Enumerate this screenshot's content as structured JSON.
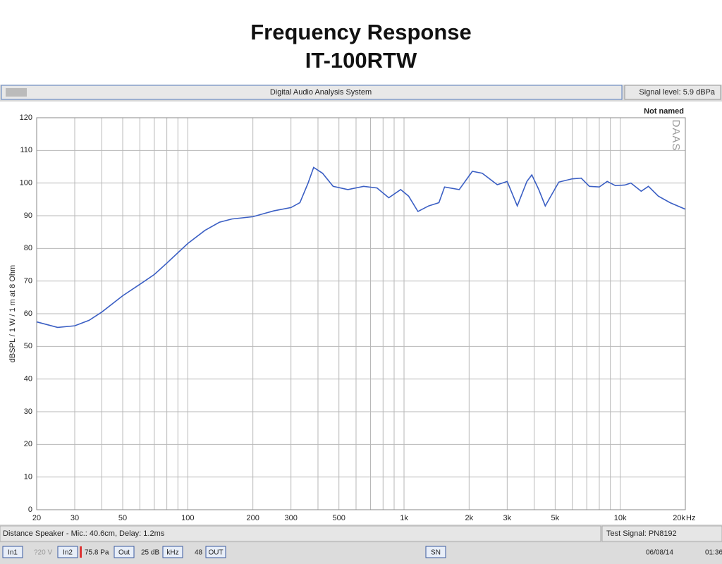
{
  "header": {
    "title_line1": "Frequency Response",
    "title_line2": "IT-100RTW"
  },
  "toolbar": {
    "title": "Digital Audio Analysis System",
    "signal_level": "Signal level: 5.9 dBPa"
  },
  "chart_data": {
    "type": "line",
    "name_label": "Not named",
    "watermark": "DAAS",
    "y_label": "dBSPL / 1 W / 1 m at 8 Ohm",
    "x_unit": "Hz",
    "color": "#3b5fc4",
    "log_x": true,
    "grid": true,
    "xlim": [
      20,
      20000
    ],
    "ylim": [
      0,
      120
    ],
    "xticks": [
      20,
      30,
      50,
      100,
      200,
      300,
      500,
      {
        "value": 1000,
        "label": "1k"
      },
      {
        "value": 2000,
        "label": "2k"
      },
      {
        "value": 3000,
        "label": "3k"
      },
      {
        "value": 5000,
        "label": "5k"
      },
      {
        "value": 10000,
        "label": "10k"
      },
      {
        "value": 20000,
        "label": "20k"
      }
    ],
    "x_minor_grid": [
      40,
      60,
      70,
      80,
      90,
      400,
      600,
      700,
      800,
      900,
      4000,
      6000,
      7000,
      8000,
      9000
    ],
    "yticks": [
      0,
      10,
      20,
      30,
      40,
      50,
      60,
      70,
      80,
      90,
      100,
      110,
      120
    ],
    "x": [
      20,
      25,
      30,
      35,
      40,
      50,
      60,
      70,
      80,
      100,
      120,
      140,
      160,
      200,
      250,
      300,
      330,
      360,
      382,
      420,
      470,
      550,
      650,
      750,
      850,
      965,
      1050,
      1160,
      1300,
      1450,
      1540,
      1800,
      2070,
      2300,
      2700,
      3000,
      3340,
      3700,
      3900,
      4200,
      4500,
      5200,
      6000,
      6600,
      7200,
      8000,
      8700,
      9500,
      10500,
      11200,
      12500,
      13500,
      15000,
      17000,
      20000
    ],
    "values": [
      57.5,
      55.8,
      56.3,
      58,
      60.5,
      65.5,
      69,
      72,
      75.5,
      81.5,
      85.5,
      88,
      89,
      89.7,
      91.5,
      92.5,
      94,
      100,
      104.8,
      103,
      99,
      98,
      99,
      98.5,
      95.5,
      98,
      96,
      91.3,
      93,
      94,
      98.8,
      98,
      103.6,
      103,
      99.5,
      100.5,
      93,
      100.5,
      102.5,
      98,
      93,
      100.3,
      101.3,
      101.5,
      99,
      98.8,
      100.5,
      99.2,
      99.4,
      100,
      97.5,
      99,
      96,
      94,
      92
    ]
  },
  "status": {
    "distance": "Distance Speaker - Mic.: 40.6cm, Delay: 1.2ms",
    "test_signal": "Test Signal: PN8192"
  },
  "bottom_bar": {
    "items": [
      "In1",
      "?20 V",
      "In2",
      "75.8 Pa",
      "Out",
      "25 dB",
      "kHz",
      "48",
      "OUT",
      "SN",
      "06/08/14",
      "01:36"
    ]
  }
}
